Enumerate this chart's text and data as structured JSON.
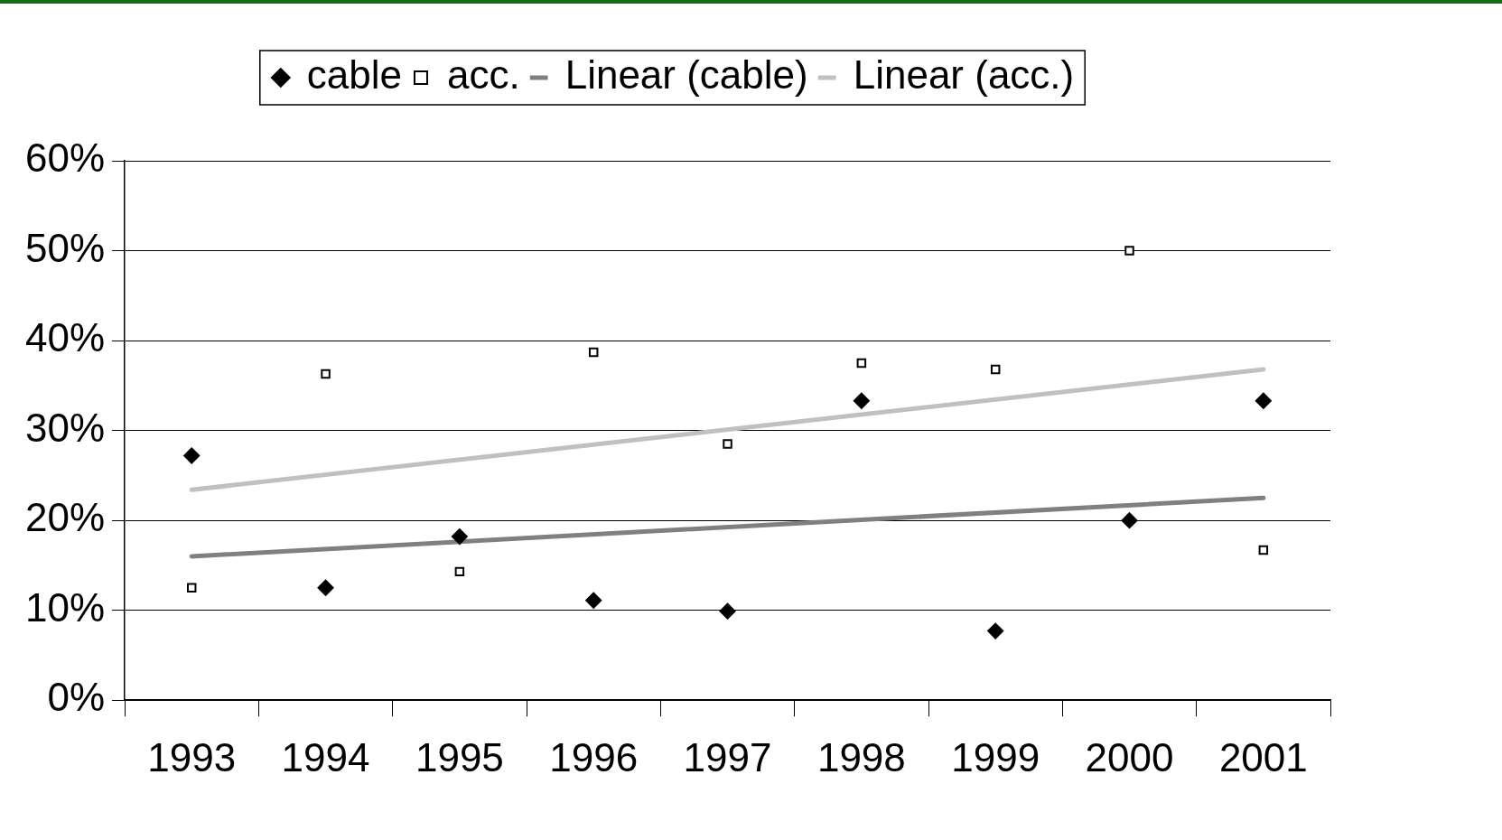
{
  "chart_data": {
    "type": "scatter",
    "categories": [
      "1993",
      "1994",
      "1995",
      "1996",
      "1997",
      "1998",
      "1999",
      "2000",
      "2001"
    ],
    "series": [
      {
        "name": "cable",
        "color": "#000000",
        "marker": "diamond",
        "values": [
          27.2,
          12.5,
          18.2,
          11.1,
          9.9,
          33.3,
          7.7,
          20.0,
          33.3
        ]
      },
      {
        "name": "acc.",
        "color": "#000000",
        "marker": "square",
        "values": [
          12.5,
          36.3,
          14.3,
          38.7,
          28.5,
          37.5,
          36.8,
          50.0,
          16.7
        ]
      },
      {
        "name": "Linear (cable)",
        "type": "line",
        "color": "#808080",
        "marker": "none",
        "values": [
          16.0,
          null,
          null,
          null,
          null,
          null,
          null,
          null,
          22.5
        ]
      },
      {
        "name": "Linear (acc.)",
        "type": "line",
        "color": "#c0c0c0",
        "marker": "none",
        "values": [
          23.4,
          null,
          null,
          null,
          null,
          null,
          null,
          null,
          36.8
        ]
      }
    ],
    "ylim": [
      0,
      60
    ],
    "yticks": [
      {
        "value": 0,
        "label": "0%"
      },
      {
        "value": 10,
        "label": "10%"
      },
      {
        "value": 20,
        "label": "20%"
      },
      {
        "value": 30,
        "label": "30%"
      },
      {
        "value": 40,
        "label": "40%"
      },
      {
        "value": 50,
        "label": "50%"
      },
      {
        "value": 60,
        "label": "60%"
      }
    ],
    "grid": "y",
    "legend": "top"
  }
}
